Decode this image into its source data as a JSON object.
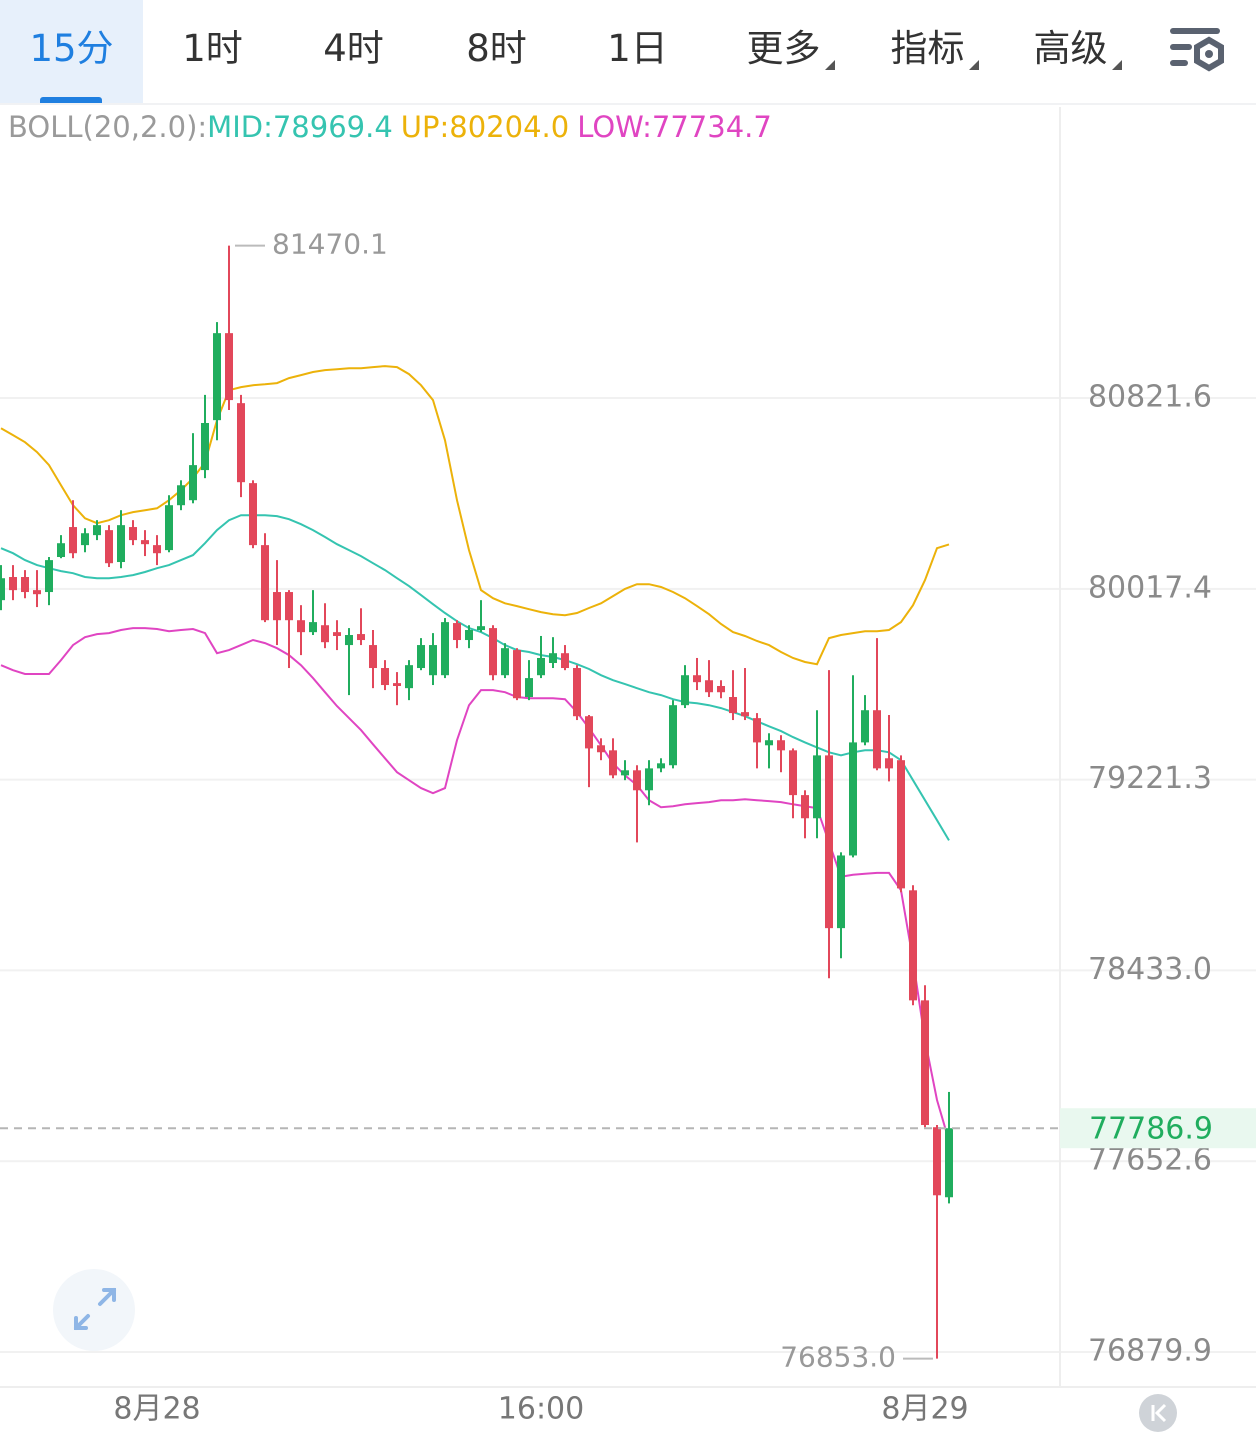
{
  "tabs": [
    "15分",
    "1时",
    "4时",
    "8时",
    "1日",
    "更多",
    "指标",
    "高级"
  ],
  "chart_data": {
    "type": "candlestick",
    "categories": [
      null,
      null,
      null,
      null,
      null,
      null,
      null,
      null,
      null,
      null,
      null,
      null,
      null,
      "8月28",
      null,
      null,
      null,
      null,
      null,
      null,
      null,
      null,
      null,
      null,
      null,
      null,
      null,
      null,
      null,
      null,
      null,
      null,
      null,
      null,
      null,
      null,
      null,
      null,
      null,
      null,
      null,
      null,
      null,
      null,
      null,
      "16:00",
      null,
      null,
      null,
      null,
      null,
      null,
      null,
      null,
      null,
      null,
      null,
      null,
      null,
      null,
      null,
      null,
      null,
      null,
      null,
      null,
      null,
      null,
      null,
      null,
      null,
      null,
      null,
      null,
      null,
      null,
      null,
      "8月29",
      null,
      null
    ],
    "open": [
      79970,
      80067,
      80067,
      80012,
      80004,
      80151,
      80277,
      80201,
      80243,
      80264,
      80130,
      80277,
      80222,
      80201,
      80180,
      80369,
      80390,
      80517,
      80728,
      81097,
      80800,
      80462,
      80201,
      80004,
      80004,
      79886,
      79836,
      79865,
      79836,
      79782,
      79828,
      79782,
      79686,
      79623,
      79602,
      79686,
      79656,
      79656,
      79874,
      79803,
      79845,
      79853,
      79656,
      79761,
      79565,
      79656,
      79707,
      79748,
      79686,
      79485,
      79364,
      79343,
      79239,
      79260,
      79177,
      79268,
      79281,
      79531,
      79656,
      79635,
      79611,
      79565,
      79502,
      79477,
      79364,
      79385,
      79343,
      79157,
      79061,
      79322,
      78607,
      78907,
      79376,
      79510,
      79310,
      79302,
      78763,
      78310,
      77791,
      77506
    ],
    "high": [
      80117,
      80117,
      80096,
      80096,
      80151,
      80243,
      80390,
      80272,
      80306,
      80285,
      80348,
      80306,
      80264,
      80243,
      80411,
      80474,
      80673,
      80835,
      81144,
      81470.1,
      80835,
      80474,
      80251,
      80138,
      80012,
      79949,
      80012,
      79957,
      79886,
      79853,
      79936,
      79845,
      79719,
      79669,
      79719,
      79811,
      79832,
      79895,
      79886,
      79865,
      79970,
      79865,
      79790,
      79769,
      79719,
      79820,
      79815,
      79782,
      79698,
      79490,
      79393,
      79393,
      79302,
      79281,
      79302,
      79310,
      79552,
      79698,
      79728,
      79719,
      79635,
      79677,
      79686,
      79498,
      79414,
      79406,
      79351,
      79177,
      79510,
      79677,
      78920,
      79656,
      79573,
      79811,
      79490,
      79322,
      78784,
      78372,
      77800,
      77935
    ],
    "low": [
      79928,
      79970,
      79978,
      79941,
      79949,
      80146,
      80146,
      80171,
      80222,
      80109,
      80104,
      80201,
      80155,
      80117,
      80171,
      80348,
      80377,
      80483,
      80643,
      80771,
      80403,
      80188,
      79878,
      79782,
      79686,
      79740,
      79824,
      79769,
      79761,
      79573,
      79782,
      79602,
      79594,
      79531,
      79552,
      79677,
      79615,
      79644,
      79769,
      79769,
      79836,
      79635,
      79644,
      79552,
      79552,
      79644,
      79686,
      79677,
      79469,
      79190,
      79302,
      79227,
      79219,
      78961,
      79115,
      79252,
      79268,
      79519,
      79594,
      79565,
      79560,
      79469,
      79469,
      79268,
      79268,
      79252,
      79061,
      78978,
      78978,
      78401,
      78483,
      78899,
      79364,
      79260,
      79214,
      78755,
      78290,
      77791,
      76853,
      77481
    ],
    "close": [
      80062,
      80012,
      80004,
      79995,
      80138,
      80209,
      80167,
      80251,
      80285,
      80125,
      80285,
      80222,
      80205,
      80167,
      80369,
      80453,
      80538,
      80716,
      81097,
      80813,
      80466,
      80201,
      79886,
      79886,
      79886,
      79836,
      79878,
      79794,
      79820,
      79824,
      79803,
      79686,
      79615,
      79611,
      79698,
      79782,
      79782,
      79878,
      79803,
      79845,
      79861,
      79656,
      79769,
      79560,
      79644,
      79728,
      79748,
      79686,
      79485,
      79351,
      79335,
      79239,
      79260,
      79177,
      79268,
      79289,
      79531,
      79656,
      79627,
      79585,
      79585,
      79498,
      79485,
      79376,
      79385,
      79343,
      79157,
      79061,
      79322,
      78607,
      78907,
      79376,
      79510,
      79268,
      79268,
      78771,
      78310,
      77800,
      77514,
      77786.9
    ],
    "low_label": "76853.0",
    "up_color": "#20ad5e",
    "down_color": "#e2475a",
    "log_scale": true,
    "ylim": [
      76739,
      82064
    ],
    "yticks": [
      80821.6,
      80017.4,
      79221.3,
      {
        "value": 78433,
        "label": "78433.0"
      },
      77652.6,
      76879.9
    ],
    "grid": true,
    "indicator": {
      "label": "BOLL(20,2.0):",
      "series": [
        {
          "label": "MID:78969.4",
          "color": "#35c4b0",
          "values": [
            80188,
            80167,
            80138,
            80117,
            80104,
            80092,
            80083,
            80067,
            80062,
            80062,
            80067,
            80075,
            80088,
            80104,
            80117,
            80138,
            80159,
            80209,
            80264,
            80306,
            80327,
            80327,
            80327,
            80323,
            80310,
            80289,
            80264,
            80235,
            80205,
            80180,
            80155,
            80125,
            80096,
            80062,
            80029,
            79991,
            79953,
            79916,
            79882,
            79853,
            79836,
            79811,
            79782,
            79761,
            79753,
            79740,
            79732,
            79719,
            79702,
            79682,
            79656,
            79635,
            79619,
            79602,
            79585,
            79573,
            79556,
            79544,
            79539,
            79531,
            79519,
            79502,
            79485,
            79464,
            79443,
            79423,
            79398,
            79376,
            79355,
            79335,
            79322,
            79335,
            79343,
            79343,
            79335,
            79302,
            79219,
            79136,
            79053,
            78969.4
          ]
        },
        {
          "label": "UP:80204.0",
          "color": "#ecb20a",
          "values": [
            80694,
            80665,
            80635,
            80593,
            80538,
            80453,
            80369,
            80314,
            80293,
            80306,
            80327,
            80340,
            80348,
            80356,
            80390,
            80432,
            80483,
            80550,
            80728,
            80855,
            80868,
            80876,
            80880,
            80885,
            80906,
            80919,
            80932,
            80940,
            80944,
            80948,
            80948,
            80953,
            80957,
            80953,
            80923,
            80876,
            80813,
            80643,
            80390,
            80180,
            80012,
            79978,
            79957,
            79945,
            79932,
            79920,
            79911,
            79907,
            79916,
            79937,
            79957,
            79987,
            80017,
            80037,
            80037,
            80025,
            80004,
            79978,
            79945,
            79911,
            79870,
            79836,
            79820,
            79799,
            79782,
            79753,
            79728,
            79711,
            79702,
            79811,
            79824,
            79832,
            79840,
            79840,
            79845,
            79878,
            79949,
            80054,
            80188,
            80204.0
          ]
        },
        {
          "label": "LOW:77734.7",
          "color": "#e045c2",
          "values": [
            79698,
            79677,
            79661,
            79661,
            79661,
            79719,
            79782,
            79815,
            79828,
            79832,
            79845,
            79853,
            79853,
            79849,
            79840,
            79845,
            79849,
            79832,
            79748,
            79761,
            79782,
            79803,
            79790,
            79769,
            79740,
            79698,
            79644,
            79585,
            79527,
            79477,
            79427,
            79368,
            79310,
            79252,
            79219,
            79186,
            79165,
            79186,
            79385,
            79531,
            79594,
            79594,
            79585,
            79565,
            79560,
            79560,
            79560,
            79556,
            79502,
            79435,
            79364,
            79289,
            79239,
            79198,
            79136,
            79107,
            79111,
            79119,
            79124,
            79128,
            79136,
            79136,
            79140,
            79136,
            79132,
            79128,
            79119,
            79111,
            79103,
            78961,
            78819,
            78827,
            78831,
            78835,
            78835,
            78763,
            78475,
            78147,
            77902,
            77734.7
          ]
        }
      ]
    }
  }
}
